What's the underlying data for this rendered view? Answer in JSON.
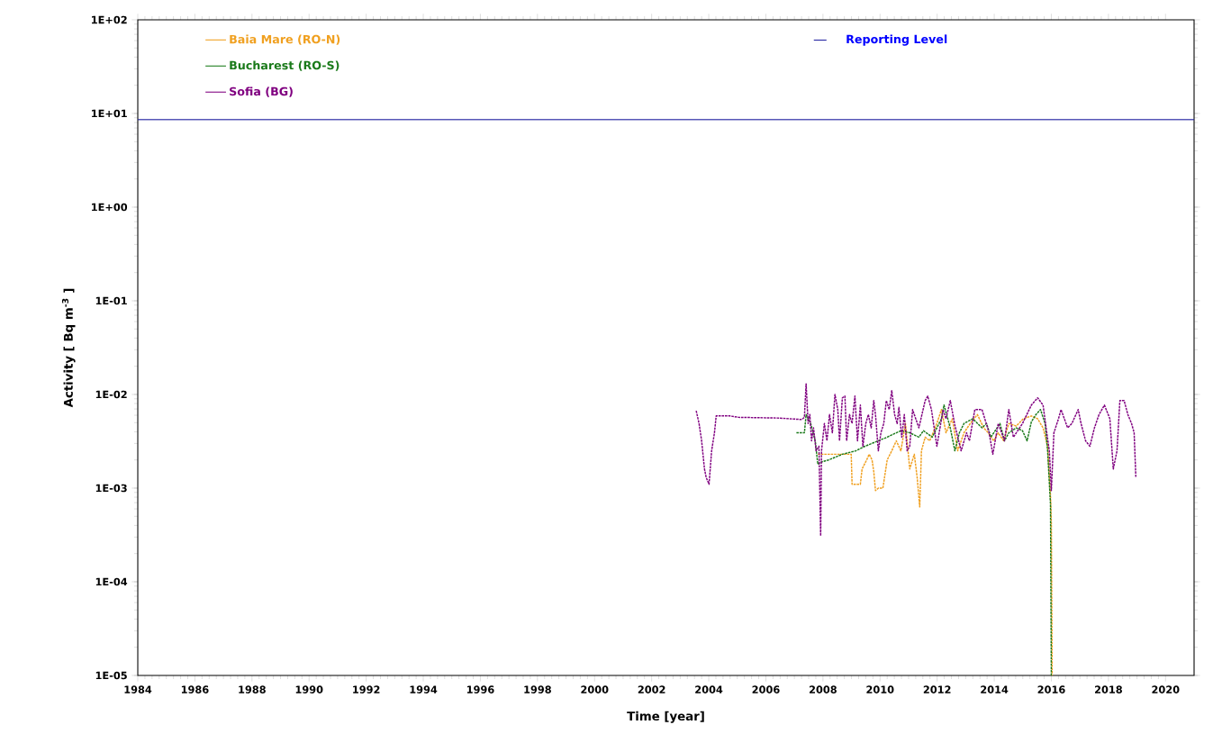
{
  "chart_data": {
    "type": "line",
    "xlabel": "Time [year]",
    "ylabel": "Activity [ Bq m$^{-3}$ ]",
    "xlim": [
      1984,
      2021
    ],
    "xticks": [
      1984,
      1986,
      1988,
      1990,
      1992,
      1994,
      1996,
      1998,
      2000,
      2002,
      2004,
      2006,
      2008,
      2010,
      2012,
      2014,
      2016,
      2018,
      2020
    ],
    "ylim": [
      1e-05,
      100
    ],
    "yticks": [
      {
        "value": 1e-05,
        "label": "1E-05"
      },
      {
        "value": 0.0001,
        "label": "1E-04"
      },
      {
        "value": 0.001,
        "label": "1E-03"
      },
      {
        "value": 0.01,
        "label": "1E-02"
      },
      {
        "value": 0.1,
        "label": "1E-01"
      },
      {
        "value": 1,
        "label": "1E+00"
      },
      {
        "value": 10,
        "label": "1E+01"
      },
      {
        "value": 100,
        "label": "1E+02"
      }
    ],
    "log": "y",
    "legend": "top left",
    "line_style": "dashed",
    "marker": "none",
    "ref_lines": [
      {
        "axis": "y",
        "value": 8.6,
        "label": "Reporting Level",
        "color": "#1f1fa0",
        "line_style": "solid"
      }
    ],
    "series": [
      {
        "name": "Baia Mare (RO-N)",
        "color": "#f0a020",
        "x": [
          2007.82,
          2008.99,
          2009.02,
          2009.31,
          2009.37,
          2009.53,
          2009.62,
          2009.72,
          2009.78,
          2009.84,
          2009.94,
          2010.1,
          2010.25,
          2010.41,
          2010.57,
          2010.73,
          2010.89,
          2011.04,
          2011.2,
          2011.3,
          2011.39,
          2011.45,
          2011.58,
          2011.74,
          2011.99,
          2012.15,
          2012.31,
          2012.53,
          2012.72,
          2012.94,
          2013.16,
          2013.41,
          2013.63,
          2013.79,
          2013.98,
          2014.14,
          2014.33,
          2014.51,
          2014.77,
          2015.02,
          2015.3,
          2015.52,
          2015.71,
          2015.87,
          2015.97,
          2016.0,
          2016.03
        ],
        "values": [
          0.0023,
          0.0023,
          0.0011,
          0.0011,
          0.0016,
          0.002,
          0.0023,
          0.002,
          0.0015,
          0.00094,
          0.001,
          0.001,
          0.002,
          0.0025,
          0.0032,
          0.0025,
          0.0049,
          0.0016,
          0.0023,
          0.0013,
          0.00063,
          0.0025,
          0.0035,
          0.0032,
          0.0049,
          0.0069,
          0.0039,
          0.0055,
          0.0025,
          0.0039,
          0.0049,
          0.0061,
          0.0044,
          0.0039,
          0.0032,
          0.0039,
          0.0032,
          0.0049,
          0.0046,
          0.0055,
          0.0059,
          0.0055,
          0.0044,
          0.0028,
          0.00084,
          0.00043,
          1e-05
        ]
      },
      {
        "name": "Bucharest (RO-S)",
        "color": "#1a7a1a",
        "x": [
          2007.07,
          2007.35,
          2007.41,
          2007.57,
          2007.73,
          2007.82,
          2007.95,
          2008.2,
          2008.68,
          2009.15,
          2009.47,
          2009.94,
          2010.25,
          2010.41,
          2010.73,
          2011.04,
          2011.36,
          2011.52,
          2011.83,
          2011.99,
          2012.15,
          2012.24,
          2012.46,
          2012.62,
          2012.78,
          2012.94,
          2013.25,
          2013.57,
          2013.73,
          2013.88,
          2014.2,
          2014.36,
          2014.51,
          2014.77,
          2014.99,
          2015.15,
          2015.3,
          2015.46,
          2015.62,
          2015.78,
          2015.87,
          2015.97,
          2016.0
        ],
        "values": [
          0.0039,
          0.0039,
          0.0061,
          0.0049,
          0.0032,
          0.0018,
          0.0019,
          0.002,
          0.0023,
          0.0025,
          0.0028,
          0.0032,
          0.0035,
          0.0037,
          0.0041,
          0.0039,
          0.0035,
          0.0041,
          0.0035,
          0.0044,
          0.0055,
          0.0077,
          0.0044,
          0.0025,
          0.0039,
          0.0049,
          0.0055,
          0.0044,
          0.0049,
          0.0035,
          0.0049,
          0.0032,
          0.0039,
          0.0044,
          0.0041,
          0.0032,
          0.0051,
          0.0061,
          0.0069,
          0.0049,
          0.0025,
          0.00067,
          1e-05
        ]
      },
      {
        "name": "Sofia (BG)",
        "color": "#800080",
        "x": [
          2003.56,
          2003.66,
          2003.75,
          2003.85,
          2003.91,
          2004.01,
          2004.1,
          2004.2,
          2004.26,
          2004.73,
          2005.05,
          2006.47,
          2007.26,
          2007.35,
          2007.41,
          2007.48,
          2007.54,
          2007.6,
          2007.67,
          2007.76,
          2007.86,
          2007.92,
          2007.95,
          2008.05,
          2008.14,
          2008.23,
          2008.33,
          2008.42,
          2008.52,
          2008.58,
          2008.68,
          2008.77,
          2008.83,
          2008.93,
          2009.02,
          2009.12,
          2009.21,
          2009.31,
          2009.4,
          2009.5,
          2009.59,
          2009.69,
          2009.78,
          2009.84,
          2009.94,
          2010.03,
          2010.13,
          2010.22,
          2010.32,
          2010.41,
          2010.51,
          2010.6,
          2010.66,
          2010.76,
          2010.85,
          2010.95,
          2011.04,
          2011.14,
          2011.36,
          2011.58,
          2011.67,
          2011.8,
          2011.99,
          2012.21,
          2012.31,
          2012.46,
          2012.62,
          2012.84,
          2013.03,
          2013.13,
          2013.32,
          2013.57,
          2013.82,
          2013.95,
          2014.14,
          2014.36,
          2014.51,
          2014.67,
          2014.99,
          2015.3,
          2015.52,
          2015.71,
          2015.84,
          2015.93,
          2016.0,
          2016.09,
          2016.25,
          2016.34,
          2016.57,
          2016.72,
          2016.94,
          2017.04,
          2017.2,
          2017.35,
          2017.51,
          2017.67,
          2017.86,
          2018.05,
          2018.17,
          2018.3,
          2018.4,
          2018.55,
          2018.68,
          2018.81,
          2018.9,
          2018.96
        ],
        "values": [
          0.0067,
          0.0049,
          0.0032,
          0.0016,
          0.0013,
          0.0011,
          0.0025,
          0.0039,
          0.0059,
          0.0059,
          0.0057,
          0.0056,
          0.0054,
          0.0057,
          0.013,
          0.0049,
          0.0061,
          0.0032,
          0.0044,
          0.0025,
          0.0028,
          0.00031,
          0.0025,
          0.0049,
          0.0032,
          0.0061,
          0.0039,
          0.01,
          0.0069,
          0.0032,
          0.0092,
          0.0096,
          0.0032,
          0.0061,
          0.0049,
          0.0096,
          0.0032,
          0.0077,
          0.0028,
          0.0049,
          0.0061,
          0.0044,
          0.0086,
          0.0061,
          0.0025,
          0.0039,
          0.0049,
          0.0086,
          0.0069,
          0.011,
          0.0061,
          0.0049,
          0.0073,
          0.0035,
          0.0061,
          0.0025,
          0.0028,
          0.0069,
          0.0044,
          0.0086,
          0.0096,
          0.0069,
          0.0028,
          0.0069,
          0.0055,
          0.0086,
          0.0047,
          0.0025,
          0.0039,
          0.0032,
          0.0069,
          0.0069,
          0.0039,
          0.0023,
          0.0049,
          0.0032,
          0.0069,
          0.0035,
          0.0049,
          0.0077,
          0.0092,
          0.0077,
          0.0039,
          0.0025,
          0.00094,
          0.0039,
          0.0055,
          0.0069,
          0.0044,
          0.0049,
          0.0069,
          0.0049,
          0.0032,
          0.0028,
          0.0044,
          0.0061,
          0.0077,
          0.0055,
          0.0016,
          0.0025,
          0.0086,
          0.0086,
          0.0061,
          0.0049,
          0.0039,
          0.0013
        ]
      }
    ]
  }
}
